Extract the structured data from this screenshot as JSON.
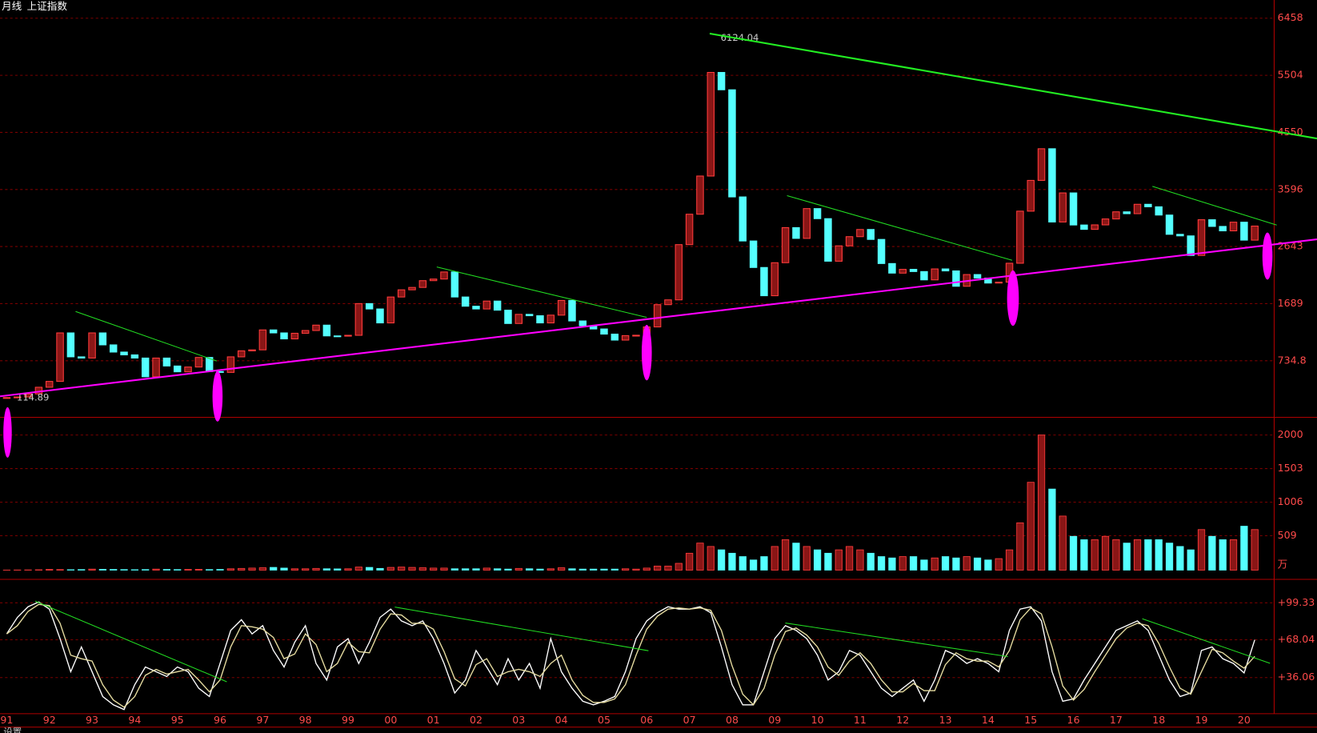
{
  "header": {
    "period": "月线",
    "name": "上证指数"
  },
  "footer": {
    "settings": "设置"
  },
  "chart_data": [
    {
      "type": "candlestick",
      "categories": [
        "91",
        null,
        null,
        null,
        "92",
        null,
        null,
        null,
        "93",
        null,
        null,
        null,
        "94",
        null,
        null,
        null,
        "95",
        null,
        null,
        null,
        "96",
        null,
        null,
        null,
        "97",
        null,
        null,
        null,
        "98",
        null,
        null,
        null,
        "99",
        null,
        null,
        null,
        "00",
        null,
        null,
        null,
        "01",
        null,
        null,
        null,
        "02",
        null,
        null,
        null,
        "03",
        null,
        null,
        null,
        "04",
        null,
        null,
        null,
        "05",
        null,
        null,
        null,
        "06",
        null,
        null,
        null,
        "07",
        null,
        null,
        null,
        "08",
        null,
        null,
        null,
        "09",
        null,
        null,
        null,
        "10",
        null,
        null,
        null,
        "11",
        null,
        null,
        null,
        "12",
        null,
        null,
        null,
        "13",
        null,
        null,
        null,
        "14",
        null,
        null,
        null,
        "15",
        null,
        null,
        null,
        "16",
        null,
        null,
        null,
        "17",
        null,
        null,
        null,
        "18",
        null,
        null,
        null,
        "19",
        null,
        null,
        null,
        "20",
        null
      ],
      "close": [
        120,
        130,
        180,
        292,
        390,
        1200,
        800,
        780,
        1200,
        1000,
        880,
        833,
        780,
        467,
        780,
        647,
        550,
        630,
        790,
        555,
        540,
        800,
        900,
        917,
        1250,
        1200,
        1100,
        1194,
        1240,
        1330,
        1150,
        1147,
        1160,
        1690,
        1600,
        1367,
        1800,
        1920,
        1960,
        2073,
        2100,
        2218,
        1800,
        1646,
        1600,
        1732,
        1580,
        1357,
        1510,
        1487,
        1367,
        1497,
        1742,
        1400,
        1320,
        1266,
        1180,
        1080,
        1155,
        1161,
        1300,
        1672,
        1752,
        2675,
        3183,
        3821,
        5552,
        5262,
        3472,
        2736,
        2293,
        1821,
        2373,
        2959,
        2779,
        3277,
        3109,
        2398,
        2655,
        2808,
        2928,
        2762,
        2359,
        2199,
        2262,
        2225,
        2086,
        2269,
        2236,
        1979,
        2175,
        2116,
        2033,
        2048,
        2364,
        3234,
        3748,
        4277,
        3053,
        3539,
        3003,
        2930,
        3005,
        3104,
        3223,
        3192,
        3349,
        3307,
        3169,
        2847,
        2821,
        2494,
        3091,
        2979,
        2905,
        3050,
        2750,
        2985
      ],
      "ylim": [
        -210,
        6762
      ],
      "yticks": [
        734.8,
        1689,
        2643,
        3596,
        4550,
        5504,
        6458
      ],
      "up_color": "#ff3c3c",
      "down_color": "#54ffff",
      "annotations": [
        {
          "label": "6124.04",
          "value": 6124.04
        },
        {
          "label": "114.89",
          "value": 114.89
        }
      ]
    },
    {
      "type": "bar",
      "values": [
        1,
        2,
        3,
        5,
        10,
        8,
        6,
        8,
        15,
        12,
        10,
        8,
        6,
        8,
        15,
        10,
        8,
        10,
        12,
        8,
        10,
        20,
        25,
        30,
        35,
        40,
        30,
        20,
        20,
        25,
        20,
        18,
        20,
        45,
        40,
        25,
        40,
        45,
        40,
        35,
        30,
        30,
        20,
        20,
        20,
        30,
        20,
        15,
        25,
        20,
        15,
        20,
        35,
        20,
        15,
        15,
        15,
        15,
        20,
        15,
        30,
        60,
        60,
        100,
        250,
        400,
        350,
        300,
        250,
        200,
        150,
        200,
        350,
        450,
        400,
        350,
        300,
        250,
        300,
        350,
        300,
        250,
        200,
        180,
        200,
        200,
        150,
        180,
        200,
        180,
        200,
        180,
        150,
        170,
        300,
        700,
        1300,
        2000,
        1200,
        800,
        500,
        450,
        450,
        500,
        450,
        400,
        450,
        450,
        450,
        400,
        350,
        300,
        600,
        500,
        450,
        450,
        650,
        600
      ],
      "ylim": [
        0,
        2225
      ],
      "yticks": [
        509,
        1006,
        1503,
        2000
      ],
      "unit": "万"
    },
    {
      "type": "line",
      "series": [
        {
          "color": "#ffffff",
          "values": [
            73,
            87,
            96,
            100,
            94,
            69,
            41,
            62,
            41,
            20,
            13,
            9,
            30,
            45,
            41,
            37,
            45,
            41,
            27,
            20,
            48,
            76,
            85,
            73,
            80,
            59,
            45,
            66,
            80,
            48,
            34,
            62,
            69,
            48,
            66,
            87,
            94,
            84,
            80,
            84,
            69,
            48,
            23,
            34,
            59,
            45,
            30,
            52,
            34,
            48,
            27,
            69,
            41,
            27,
            16,
            13,
            16,
            20,
            41,
            69,
            84,
            91,
            96,
            94,
            94,
            96,
            91,
            62,
            30,
            13,
            13,
            41,
            69,
            80,
            76,
            69,
            55,
            34,
            41,
            59,
            55,
            41,
            27,
            20,
            27,
            34,
            16,
            34,
            59,
            55,
            48,
            52,
            48,
            41,
            76,
            94,
            96,
            84,
            41,
            16,
            18,
            34,
            48,
            62,
            76,
            80,
            84,
            76,
            55,
            34,
            20,
            23,
            59,
            62,
            52,
            48,
            40,
            68
          ]
        },
        {
          "color": "#e6dca0",
          "values": [
            73,
            80,
            92,
            98,
            97,
            82,
            55,
            52,
            50,
            30,
            17,
            11,
            20,
            38,
            43,
            39,
            41,
            43,
            34,
            24,
            34,
            62,
            80,
            79,
            77,
            70,
            52,
            56,
            73,
            64,
            41,
            48,
            66,
            58,
            57,
            77,
            90,
            89,
            82,
            82,
            77,
            58,
            35,
            29,
            47,
            52,
            37,
            41,
            43,
            41,
            37,
            48,
            55,
            34,
            21,
            15,
            15,
            18,
            30,
            55,
            77,
            88,
            94,
            95,
            94,
            95,
            93,
            76,
            46,
            22,
            13,
            27,
            55,
            75,
            78,
            72,
            62,
            45,
            38,
            50,
            57,
            48,
            34,
            24,
            24,
            31,
            25,
            25,
            47,
            57,
            52,
            50,
            50,
            45,
            59,
            85,
            95,
            90,
            62,
            29,
            17,
            26,
            41,
            55,
            69,
            78,
            82,
            80,
            65,
            45,
            27,
            22,
            41,
            60,
            57,
            50,
            44,
            54
          ]
        }
      ],
      "ylim": [
        6.9,
        113.5
      ],
      "yticks": [
        {
          "value": 36.06,
          "label": "+36.06"
        },
        {
          "value": 68.04,
          "label": "+68.04"
        },
        {
          "value": 99.33,
          "label": "+99.33"
        }
      ]
    }
  ]
}
